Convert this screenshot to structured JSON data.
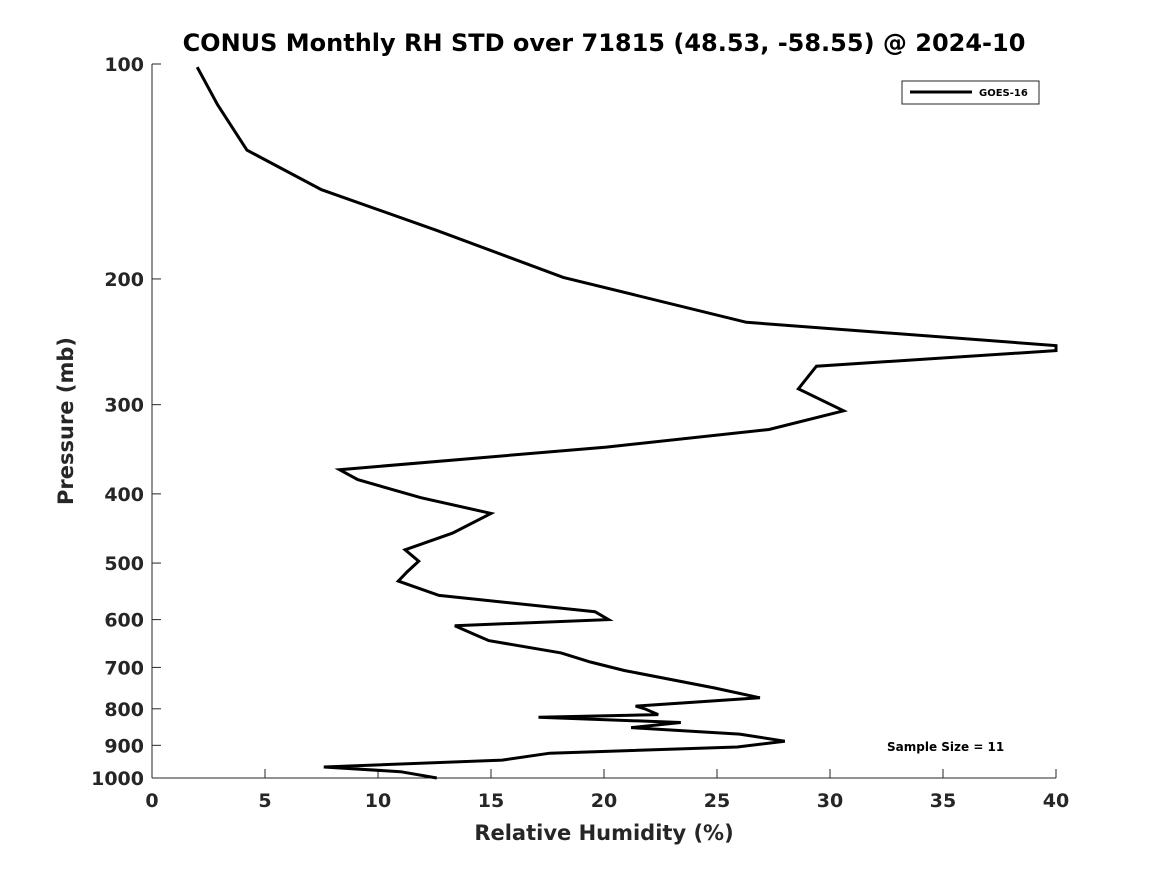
{
  "chart_data": {
    "type": "line",
    "title": "CONUS Monthly RH STD over 71815 (48.53, -58.55) @ 2024-10",
    "xlabel": "Relative Humidity (%)",
    "ylabel": "Pressure (mb)",
    "xlim": [
      0,
      40
    ],
    "ylim": [
      100,
      1000
    ],
    "y_scale": "log",
    "y_direction": "reversed",
    "grid": false,
    "legend_position": "top-right",
    "x_ticks": [
      0,
      5,
      10,
      15,
      20,
      25,
      30,
      35,
      40
    ],
    "y_ticks": [
      100,
      200,
      300,
      400,
      500,
      600,
      700,
      800,
      900,
      1000
    ],
    "series": [
      {
        "name": "GOES-16",
        "color": "#000000",
        "x": [
          2.0,
          2.9,
          4.2,
          7.5,
          12.6,
          18.2,
          26.3,
          40.0,
          40.0,
          29.4,
          28.6,
          30.6,
          27.3,
          20.1,
          8.3,
          9.1,
          11.9,
          15.0,
          13.3,
          11.2,
          11.8,
          11.3,
          10.9,
          12.7,
          19.6,
          20.2,
          13.4,
          14.2,
          14.9,
          18.1,
          19.4,
          20.9,
          24.9,
          26.9,
          21.4,
          21.8,
          22.4,
          17.1,
          23.4,
          21.2,
          26.0,
          28.0,
          25.9,
          17.6,
          15.5,
          7.6,
          11.0,
          12.6
        ],
        "y": [
          101,
          114,
          132,
          150,
          171,
          199,
          230,
          248,
          252,
          265,
          285,
          306,
          325,
          344,
          370,
          382,
          405,
          426,
          454,
          479,
          497,
          514,
          530,
          555,
          585,
          600,
          612,
          628,
          642,
          668,
          688,
          707,
          748,
          772,
          793,
          800,
          815,
          822,
          836,
          850,
          868,
          888,
          905,
          923,
          944,
          965,
          980,
          1000
        ]
      }
    ],
    "annotations": [
      "Sample Size = 11"
    ]
  }
}
